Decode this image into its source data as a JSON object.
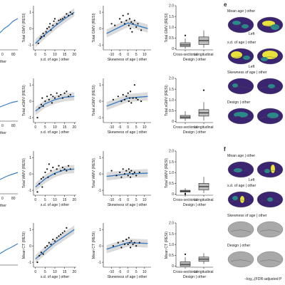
{
  "labels": {
    "xlabel_sd": "s.d. of age | other",
    "xlabel_skew": "Skewness of age | other",
    "xlabel_design": "Design | other",
    "x_left_partial": "ther",
    "design_categories": [
      "Cross-sectional",
      "Longitudinal"
    ],
    "brain_left": "Left",
    "colorbar_caption": "−log₁₀(FDR-adjusted P"
  },
  "panel_e": {
    "letter": "e",
    "titles": [
      "Mean age | other",
      "s.d. of age | other",
      "Skewness of age | other",
      "Design | other"
    ]
  },
  "panel_f": {
    "letter": "f",
    "titles": [
      "Mean age | other",
      "s.d. of age | other",
      "Skewness of age | other",
      "Design | other"
    ]
  },
  "colors": {
    "fit_line": "#3a7fc4",
    "band": "#cfcfcf",
    "point": "#111111",
    "box_fill": "#bdbdbd",
    "brain_dark": "#3b2470",
    "brain_yellow": "#e8e23a",
    "brain_teal": "#2a8a8a",
    "brain_grey": "#a9a9a9"
  },
  "chart_data": [
    {
      "type": "scatter",
      "row": "GMV",
      "ylabel": "Total GMV (RESI)",
      "x_tick_labels": [
        "0",
        "5",
        "10",
        "15",
        "20"
      ],
      "xlim": [
        -1,
        21
      ],
      "y_tick_labels": [
        "1",
        "0",
        "-1"
      ],
      "ylim": [
        -1.3,
        1.4
      ],
      "fit": [
        [
          0,
          -0.9
        ],
        [
          5,
          -0.35
        ],
        [
          10,
          0.15
        ],
        [
          15,
          0.6
        ],
        [
          20,
          1.0
        ]
      ],
      "points": [
        [
          1.5,
          -0.9
        ],
        [
          2.5,
          -0.6
        ],
        [
          3,
          -0.5
        ],
        [
          4,
          -0.3
        ],
        [
          4.5,
          -0.45
        ],
        [
          5.5,
          -0.2
        ],
        [
          6,
          0.0
        ],
        [
          7,
          0.1
        ],
        [
          7.5,
          0.3
        ],
        [
          8,
          -0.1
        ],
        [
          9,
          0.2
        ],
        [
          9.5,
          0.45
        ],
        [
          10,
          0.6
        ],
        [
          11,
          0.3
        ],
        [
          12,
          0.5
        ],
        [
          13,
          0.55
        ],
        [
          14,
          0.6
        ],
        [
          15,
          0.7
        ],
        [
          16,
          0.9
        ],
        [
          17,
          0.8
        ],
        [
          18,
          1.0
        ],
        [
          19,
          0.9
        ]
      ]
    },
    {
      "type": "scatter",
      "row": "GMV",
      "ylabel": "Total GMV (RESI)",
      "x_tick_labels": [
        "-10",
        "-5",
        "0",
        "5",
        "10"
      ],
      "xlim": [
        -15,
        14
      ],
      "y_tick_labels": [
        "1",
        "0",
        "-1"
      ],
      "ylim": [
        -1.3,
        1.4
      ],
      "fit": [
        [
          -13,
          -0.3
        ],
        [
          0,
          0.35
        ],
        [
          12,
          0.0
        ]
      ],
      "points": [
        [
          -10,
          0.3
        ],
        [
          -8,
          0.2
        ],
        [
          -5,
          0.6
        ],
        [
          -4,
          0.4
        ],
        [
          -3,
          0.8
        ],
        [
          -2,
          0.3
        ],
        [
          -1,
          0.5
        ],
        [
          0,
          0.9
        ],
        [
          0.5,
          0.2
        ],
        [
          1,
          0.6
        ],
        [
          1.5,
          0.0
        ],
        [
          2,
          0.4
        ],
        [
          2.5,
          -0.2
        ],
        [
          3,
          0.3
        ],
        [
          4,
          0.5
        ],
        [
          5,
          0.1
        ],
        [
          6,
          0.3
        ],
        [
          8,
          -0.1
        ]
      ]
    },
    {
      "type": "box",
      "row": "GMV",
      "ylabel": "Total GMV (RESI)",
      "categories": [
        "Cross-sectional",
        "Longitudinal"
      ],
      "y_tick_labels": [
        "2.0",
        "1.5",
        "1.0",
        "0.5",
        "0"
      ],
      "ylim": [
        -0.05,
        2.0
      ],
      "boxes": [
        {
          "category": "Cross-sectional",
          "q1": 0.1,
          "median": 0.18,
          "q3": 0.28,
          "whisker_low": 0.0,
          "whisker_high": 0.48,
          "outliers": [
            0.62
          ]
        },
        {
          "category": "Longitudinal",
          "q1": 0.2,
          "median": 0.38,
          "q3": 0.55,
          "whisker_low": 0.05,
          "whisker_high": 0.85,
          "outliers": []
        }
      ]
    },
    {
      "type": "scatter",
      "row": "sGMV",
      "ylabel": "Total sGMV (RESI)",
      "x_tick_labels": [
        "0",
        "5",
        "10",
        "15",
        "20"
      ],
      "xlim": [
        -1,
        21
      ],
      "y_tick_labels": [
        "1",
        "0",
        "-1"
      ],
      "ylim": [
        -1.3,
        1.4
      ],
      "fit": [
        [
          0,
          -0.6
        ],
        [
          5,
          -0.15
        ],
        [
          10,
          0.1
        ],
        [
          15,
          0.25
        ],
        [
          20,
          0.3
        ]
      ],
      "points": [
        [
          1,
          -1.0
        ],
        [
          2,
          -0.4
        ],
        [
          3,
          -0.2
        ],
        [
          3.5,
          0.2
        ],
        [
          4,
          -0.3
        ],
        [
          5,
          0.0
        ],
        [
          6,
          0.3
        ],
        [
          7,
          0.1
        ],
        [
          8,
          0.4
        ],
        [
          8.5,
          -0.1
        ],
        [
          9,
          0.3
        ],
        [
          10,
          0.2
        ],
        [
          11,
          0.5
        ],
        [
          12,
          0.3
        ],
        [
          13,
          0.4
        ],
        [
          14,
          0.2
        ],
        [
          15,
          0.5
        ],
        [
          16,
          0.6
        ],
        [
          17,
          0.3
        ],
        [
          18,
          0.4
        ]
      ]
    },
    {
      "type": "scatter",
      "row": "sGMV",
      "ylabel": "Total sGMV (RESI)",
      "x_tick_labels": [
        "-10",
        "-5",
        "0",
        "5",
        "10"
      ],
      "xlim": [
        -15,
        14
      ],
      "y_tick_labels": [
        "1",
        "0",
        "-1"
      ],
      "ylim": [
        -1.3,
        1.4
      ],
      "fit": [
        [
          -13,
          -0.3
        ],
        [
          0,
          0.2
        ],
        [
          12,
          0.3
        ]
      ],
      "points": [
        [
          -9,
          0.1
        ],
        [
          -6,
          0.3
        ],
        [
          -4,
          0.0
        ],
        [
          -3,
          0.4
        ],
        [
          -2,
          0.1
        ],
        [
          -1,
          0.3
        ],
        [
          0,
          0.5
        ],
        [
          0.5,
          0.0
        ],
        [
          1,
          0.2
        ],
        [
          1.5,
          0.6
        ],
        [
          2,
          -0.1
        ],
        [
          3,
          0.2
        ],
        [
          4,
          1.0
        ],
        [
          5,
          0.2
        ],
        [
          6,
          0.1
        ],
        [
          8,
          0.0
        ]
      ]
    },
    {
      "type": "box",
      "row": "sGMV",
      "ylabel": "Total sGMV (RESI)",
      "categories": [
        "Cross-sectional",
        "Longitudinal"
      ],
      "y_tick_labels": [
        "2.0",
        "1.5",
        "1.0",
        "0.5",
        "0"
      ],
      "ylim": [
        -0.05,
        2.0
      ],
      "boxes": [
        {
          "category": "Cross-sectional",
          "q1": 0.14,
          "median": 0.2,
          "q3": 0.28,
          "whisker_low": 0.02,
          "whisker_high": 0.48,
          "outliers": []
        },
        {
          "category": "Longitudinal",
          "q1": 0.25,
          "median": 0.4,
          "q3": 0.55,
          "whisker_low": 0.05,
          "whisker_high": 0.9,
          "outliers": [
            1.45
          ]
        }
      ]
    },
    {
      "type": "scatter",
      "row": "WMV",
      "ylabel": "Total WMV (RESI)",
      "x_tick_labels": [
        "0",
        "5",
        "10",
        "15",
        "20"
      ],
      "xlim": [
        -1,
        21
      ],
      "y_tick_labels": [
        "1",
        "0",
        "-1"
      ],
      "ylim": [
        -1.3,
        1.4
      ],
      "fit": [
        [
          0,
          -0.8
        ],
        [
          5,
          -0.3
        ],
        [
          10,
          0.05
        ],
        [
          15,
          0.25
        ],
        [
          20,
          0.3
        ]
      ],
      "points": [
        [
          1,
          -1.1
        ],
        [
          2,
          -0.6
        ],
        [
          3,
          -0.3
        ],
        [
          3.5,
          -0.8
        ],
        [
          4,
          -0.2
        ],
        [
          5,
          0.1
        ],
        [
          6,
          0.3
        ],
        [
          6.5,
          -0.2
        ],
        [
          7,
          0.6
        ],
        [
          8,
          0.2
        ],
        [
          9,
          0.4
        ],
        [
          10,
          0.0
        ],
        [
          11,
          0.3
        ],
        [
          12,
          0.5
        ],
        [
          13,
          0.2
        ],
        [
          14,
          0.4
        ],
        [
          15,
          0.3
        ],
        [
          16,
          0.2
        ],
        [
          17,
          0.5
        ],
        [
          18,
          0.3
        ]
      ]
    },
    {
      "type": "scatter",
      "row": "WMV",
      "ylabel": "Total WMV (RESI)",
      "x_tick_labels": [
        "-10",
        "-5",
        "0",
        "5",
        "10"
      ],
      "xlim": [
        -15,
        14
      ],
      "y_tick_labels": [
        "1",
        "0",
        "-1"
      ],
      "ylim": [
        -1.3,
        1.4
      ],
      "fit": [
        [
          -13,
          -0.15
        ],
        [
          0,
          0.0
        ],
        [
          12,
          0.05
        ]
      ],
      "points": [
        [
          -10,
          0.2
        ],
        [
          -7,
          -0.1
        ],
        [
          -5,
          0.1
        ],
        [
          -4,
          -0.2
        ],
        [
          -3,
          0.3
        ],
        [
          -2,
          0.0
        ],
        [
          -1,
          0.2
        ],
        [
          0,
          -0.1
        ],
        [
          0.5,
          0.3
        ],
        [
          1,
          0.1
        ],
        [
          1.5,
          -0.2
        ],
        [
          2,
          0.2
        ],
        [
          3,
          0.0
        ],
        [
          4,
          0.1
        ],
        [
          5,
          -0.1
        ],
        [
          7,
          0.1
        ]
      ]
    },
    {
      "type": "box",
      "row": "WMV",
      "ylabel": "Total WMV (RESI)",
      "categories": [
        "Cross-sectional",
        "Longitudinal"
      ],
      "y_tick_labels": [
        "2.0",
        "1.5",
        "1.0",
        "0.5",
        "0"
      ],
      "ylim": [
        -0.05,
        2.0
      ],
      "boxes": [
        {
          "category": "Cross-sectional",
          "q1": 0.1,
          "median": 0.14,
          "q3": 0.18,
          "whisker_low": 0.05,
          "whisker_high": 0.28,
          "outliers": [
            0.0,
            0.02
          ]
        },
        {
          "category": "Longitudinal",
          "q1": 0.2,
          "median": 0.35,
          "q3": 0.5,
          "whisker_low": 0.05,
          "whisker_high": 0.8,
          "outliers": []
        }
      ]
    },
    {
      "type": "scatter",
      "row": "CT",
      "ylabel": "Mean CT (RESI)",
      "x_tick_labels": [
        "0",
        "5",
        "10",
        "15",
        "20"
      ],
      "xlim": [
        -1,
        21
      ],
      "y_tick_labels": [
        "1",
        "0",
        "-1"
      ],
      "ylim": [
        -1.3,
        1.4
      ],
      "fit": [
        [
          0,
          -0.8
        ],
        [
          5,
          -0.3
        ],
        [
          10,
          0.2
        ],
        [
          15,
          0.6
        ],
        [
          20,
          1.0
        ]
      ],
      "points": [
        [
          1,
          -1.0
        ],
        [
          2,
          -0.6
        ],
        [
          3,
          -0.4
        ],
        [
          4,
          -0.5
        ],
        [
          5,
          -0.1
        ],
        [
          6,
          0.0
        ],
        [
          7,
          0.2
        ],
        [
          8,
          0.1
        ],
        [
          9,
          0.4
        ],
        [
          10,
          0.3
        ],
        [
          11,
          0.5
        ],
        [
          12,
          0.6
        ],
        [
          13,
          0.7
        ],
        [
          14,
          0.8
        ],
        [
          15,
          0.9
        ],
        [
          16,
          1.1
        ]
      ]
    },
    {
      "type": "scatter",
      "row": "CT",
      "ylabel": "Mean CT (RESI)",
      "x_tick_labels": [
        "-10",
        "-5",
        "0",
        "5",
        "10"
      ],
      "xlim": [
        -15,
        14
      ],
      "y_tick_labels": [
        "1",
        "0",
        "-1"
      ],
      "ylim": [
        -1.3,
        1.4
      ],
      "fit": [
        [
          -13,
          -0.2
        ],
        [
          0,
          0.2
        ],
        [
          12,
          0.15
        ]
      ],
      "points": [
        [
          -9,
          0.0
        ],
        [
          -6,
          0.2
        ],
        [
          -4,
          -0.1
        ],
        [
          -3,
          0.3
        ],
        [
          -2,
          0.1
        ],
        [
          -1,
          0.4
        ],
        [
          0,
          0.1
        ],
        [
          0.5,
          0.5
        ],
        [
          1,
          0.2
        ],
        [
          1.5,
          -0.1
        ],
        [
          2,
          0.3
        ],
        [
          3,
          0.1
        ],
        [
          4,
          0.2
        ],
        [
          5,
          0.0
        ],
        [
          7,
          0.2
        ]
      ]
    },
    {
      "type": "box",
      "row": "CT",
      "ylabel": "Mean CT (RESI)",
      "categories": [
        "Cross-sectional",
        "Longitudinal"
      ],
      "y_tick_labels": [
        "2.0",
        "1.5",
        "1.0",
        "0.5",
        "0"
      ],
      "ylim": [
        -0.05,
        2.0
      ],
      "boxes": [
        {
          "category": "Cross-sectional",
          "q1": 0.0,
          "median": 0.08,
          "q3": 0.2,
          "whisker_low": 0.0,
          "whisker_high": 0.42,
          "outliers": [
            0.55
          ]
        },
        {
          "category": "Longitudinal",
          "q1": 0.22,
          "median": 0.32,
          "q3": 0.42,
          "whisker_low": 0.1,
          "whisker_high": 0.6,
          "outliers": []
        }
      ]
    }
  ]
}
